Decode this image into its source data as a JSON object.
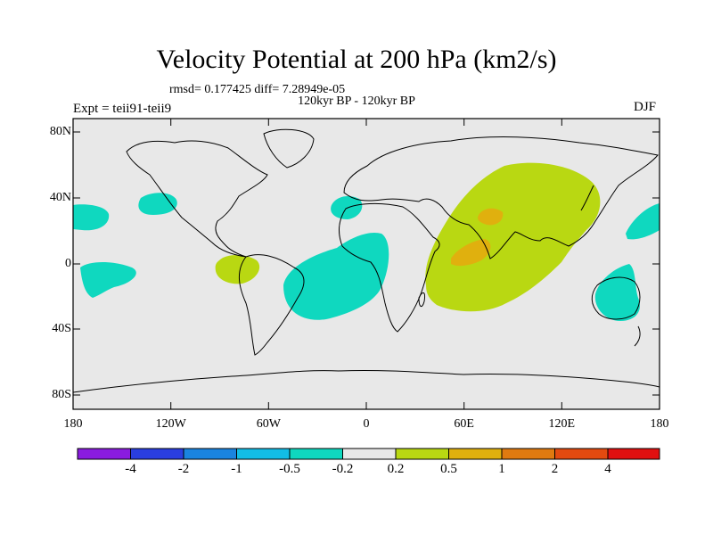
{
  "title": "Velocity Potential at 200 hPa (km2/s)",
  "stats": "rmsd= 0.177425 diff= 7.28949e-05",
  "subtitle": "120kyr BP - 120kyr BP",
  "experiment": "Expt = teii91-teii9",
  "season": "DJF",
  "lat_labels": [
    "80N",
    "40N",
    "0",
    "40S",
    "80S"
  ],
  "lon_labels": [
    "180",
    "120W",
    "60W",
    "0",
    "60E",
    "120E",
    "180"
  ],
  "colorbar": {
    "labels": [
      "-4",
      "-2",
      "-1",
      "-0.5",
      "-0.2",
      "0.2",
      "0.5",
      "1",
      "2",
      "4"
    ],
    "colors": [
      "#8a1cdf",
      "#2a3ee0",
      "#1a84e0",
      "#12bde6",
      "#0fd8bf",
      "#e8e8e8",
      "#b9d812",
      "#e0b00e",
      "#e07a10",
      "#e34a10",
      "#e01010"
    ]
  },
  "map_colors": {
    "background": "#e8e8e8",
    "negative_weak": "#0fd8bf",
    "positive_weak": "#b9d812",
    "positive_mid": "#e0a020"
  }
}
